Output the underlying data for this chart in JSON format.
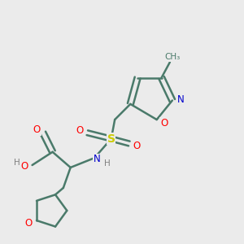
{
  "background_color": "#ebebeb",
  "bond_color": "#4a7a6a",
  "atom_colors": {
    "O": "#ff0000",
    "N": "#0000cc",
    "S": "#cccc00",
    "C": "#4a7a6a",
    "H": "#808080"
  },
  "figsize": [
    3.0,
    3.0
  ],
  "dpi": 100
}
